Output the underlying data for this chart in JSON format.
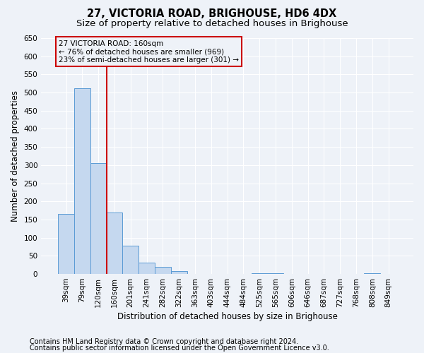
{
  "title": "27, VICTORIA ROAD, BRIGHOUSE, HD6 4DX",
  "subtitle": "Size of property relative to detached houses in Brighouse",
  "xlabel": "Distribution of detached houses by size in Brighouse",
  "ylabel": "Number of detached properties",
  "bin_labels": [
    "39sqm",
    "79sqm",
    "120sqm",
    "160sqm",
    "201sqm",
    "241sqm",
    "282sqm",
    "322sqm",
    "363sqm",
    "403sqm",
    "444sqm",
    "484sqm",
    "525sqm",
    "565sqm",
    "606sqm",
    "646sqm",
    "687sqm",
    "727sqm",
    "768sqm",
    "808sqm",
    "849sqm"
  ],
  "bar_values": [
    165,
    512,
    305,
    170,
    77,
    32,
    20,
    7,
    0,
    0,
    0,
    0,
    3,
    3,
    0,
    0,
    0,
    0,
    0,
    3,
    0
  ],
  "bar_color": "#c5d8ef",
  "bar_edge_color": "#5b9bd5",
  "vline_x_idx": 3,
  "vline_color": "#cc0000",
  "annotation_text": "27 VICTORIA ROAD: 160sqm\n← 76% of detached houses are smaller (969)\n23% of semi-detached houses are larger (301) →",
  "annotation_box_color": "#cc0000",
  "ylim": [
    0,
    650
  ],
  "yticks": [
    0,
    50,
    100,
    150,
    200,
    250,
    300,
    350,
    400,
    450,
    500,
    550,
    600,
    650
  ],
  "footer_line1": "Contains HM Land Registry data © Crown copyright and database right 2024.",
  "footer_line2": "Contains public sector information licensed under the Open Government Licence v3.0.",
  "bg_color": "#eef2f8",
  "plot_bg_color": "#eef2f8",
  "grid_color": "#ffffff",
  "title_fontsize": 10.5,
  "subtitle_fontsize": 9.5,
  "axis_label_fontsize": 8.5,
  "tick_fontsize": 7.5,
  "annotation_fontsize": 7.5,
  "footer_fontsize": 7
}
